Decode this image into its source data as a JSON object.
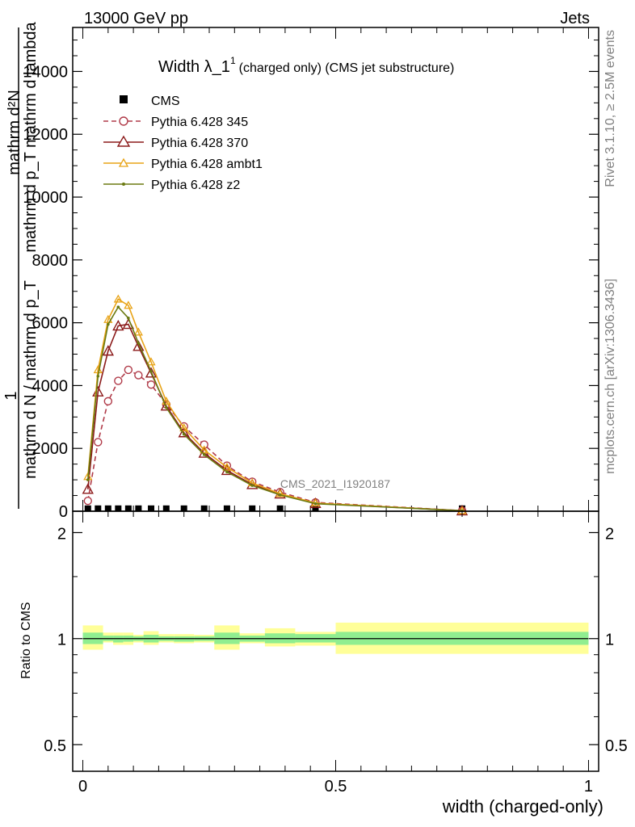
{
  "header": {
    "left": "13000 GeV pp",
    "right": "Jets"
  },
  "side_text": {
    "rivet": "Rivet 3.1.10, ≥ 2.5M events",
    "mcplots": "mcplots.cern.ch [arXiv:1306.3436]"
  },
  "watermark": "CMS_2021_I1920187",
  "chart_data": [
    {
      "type": "line",
      "title": "Width λ_1",
      "title_sup": "1",
      "title_suffix": "(charged only) (CMS jet substructure)",
      "ylabel_fraction_one": "1",
      "ylabel_top": "mathrm d²N",
      "ylabel_top2": "mathrm d p_T mathrm d lambda",
      "ylabel_bottom": "mathrm d N / mathrm d p_T",
      "ylim": [
        0,
        15400
      ],
      "xlim": [
        -0.02,
        1.02
      ],
      "yticks": [
        0,
        2000,
        4000,
        6000,
        8000,
        10000,
        12000,
        14000
      ],
      "ytick_labels": [
        "0",
        "2000",
        "4000",
        "6000",
        "8000",
        "10000",
        "12000",
        "14000"
      ],
      "legend_position": "top-left",
      "series": [
        {
          "name": "CMS",
          "color": "#000000",
          "marker": "square",
          "x": [
            0.01,
            0.03,
            0.05,
            0.07,
            0.09,
            0.11,
            0.135,
            0.165,
            0.2,
            0.24,
            0.285,
            0.335,
            0.39,
            0.46,
            0.75
          ],
          "y": [
            5,
            5,
            5,
            5,
            5,
            5,
            5,
            5,
            5,
            5,
            5,
            5,
            5,
            5,
            5
          ]
        },
        {
          "name": "Pythia 6.428 345",
          "color": "#b03a48",
          "marker": "open-circle",
          "dash": "dashed",
          "x": [
            0.01,
            0.03,
            0.05,
            0.07,
            0.09,
            0.11,
            0.135,
            0.165,
            0.2,
            0.24,
            0.285,
            0.335,
            0.39,
            0.46,
            0.75
          ],
          "y": [
            330,
            2200,
            3500,
            4150,
            4500,
            4330,
            4030,
            3400,
            2700,
            2120,
            1450,
            940,
            610,
            280,
            20
          ]
        },
        {
          "name": "Pythia 6.428 370",
          "color": "#8b1a1a",
          "marker": "open-triangle",
          "x": [
            0.01,
            0.03,
            0.05,
            0.07,
            0.09,
            0.11,
            0.135,
            0.165,
            0.2,
            0.24,
            0.285,
            0.335,
            0.39,
            0.46,
            0.75
          ],
          "y": [
            700,
            3800,
            5100,
            5900,
            5950,
            5250,
            4400,
            3350,
            2500,
            1850,
            1300,
            850,
            550,
            250,
            15
          ]
        },
        {
          "name": "Pythia 6.428 ambt1",
          "color": "#e8a317",
          "marker": "open-triangle-small",
          "x": [
            0.01,
            0.03,
            0.05,
            0.07,
            0.09,
            0.11,
            0.135,
            0.165,
            0.2,
            0.24,
            0.285,
            0.335,
            0.39,
            0.46,
            0.75
          ],
          "y": [
            1100,
            4500,
            6100,
            6750,
            6550,
            5700,
            4750,
            3500,
            2650,
            1950,
            1400,
            900,
            560,
            260,
            15
          ]
        },
        {
          "name": "Pythia 6.428 z2",
          "color": "#6b7a12",
          "marker": "dot",
          "x": [
            0.01,
            0.03,
            0.05,
            0.07,
            0.09,
            0.11,
            0.135,
            0.165,
            0.2,
            0.24,
            0.285,
            0.335,
            0.39,
            0.46,
            0.75
          ],
          "y": [
            1000,
            4300,
            5950,
            6500,
            6150,
            5350,
            4450,
            3300,
            2450,
            1800,
            1250,
            820,
            520,
            240,
            15
          ]
        }
      ]
    },
    {
      "type": "band",
      "ylabel": "Ratio to CMS",
      "xlabel": "width (charged-only)",
      "ylim": [
        0.42,
        2.3
      ],
      "log_scale_y": true,
      "yticks": [
        0.5,
        1,
        2
      ],
      "ytick_labels": [
        "0.5",
        "1",
        "2"
      ],
      "xticks": [
        0,
        0.5,
        1
      ],
      "xtick_labels": [
        "0",
        "0.5",
        "1"
      ],
      "reference_line": 1,
      "band_inner_color": "#90ee90",
      "band_outer_color": "#ffff99",
      "bins": [
        {
          "x0": 0.0,
          "x1": 0.04,
          "inner": [
            0.965,
            1.04
          ],
          "outer": [
            0.93,
            1.09
          ]
        },
        {
          "x0": 0.04,
          "x1": 0.06,
          "inner": [
            0.985,
            1.02
          ],
          "outer": [
            0.975,
            1.04
          ]
        },
        {
          "x0": 0.06,
          "x1": 0.08,
          "inner": [
            0.975,
            1.02
          ],
          "outer": [
            0.96,
            1.04
          ]
        },
        {
          "x0": 0.08,
          "x1": 0.1,
          "inner": [
            0.98,
            1.02
          ],
          "outer": [
            0.96,
            1.04
          ]
        },
        {
          "x0": 0.1,
          "x1": 0.12,
          "inner": [
            0.985,
            1.015
          ],
          "outer": [
            0.975,
            1.025
          ]
        },
        {
          "x0": 0.12,
          "x1": 0.15,
          "inner": [
            0.975,
            1.025
          ],
          "outer": [
            0.96,
            1.05
          ]
        },
        {
          "x0": 0.15,
          "x1": 0.18,
          "inner": [
            0.985,
            1.015
          ],
          "outer": [
            0.975,
            1.03
          ]
        },
        {
          "x0": 0.18,
          "x1": 0.22,
          "inner": [
            0.98,
            1.015
          ],
          "outer": [
            0.97,
            1.03
          ]
        },
        {
          "x0": 0.22,
          "x1": 0.26,
          "inner": [
            0.985,
            1.015
          ],
          "outer": [
            0.975,
            1.025
          ]
        },
        {
          "x0": 0.26,
          "x1": 0.31,
          "inner": [
            0.965,
            1.04
          ],
          "outer": [
            0.93,
            1.09
          ]
        },
        {
          "x0": 0.31,
          "x1": 0.36,
          "inner": [
            0.98,
            1.02
          ],
          "outer": [
            0.97,
            1.035
          ]
        },
        {
          "x0": 0.36,
          "x1": 0.42,
          "inner": [
            0.97,
            1.035
          ],
          "outer": [
            0.95,
            1.07
          ]
        },
        {
          "x0": 0.42,
          "x1": 0.5,
          "inner": [
            0.975,
            1.03
          ],
          "outer": [
            0.955,
            1.045
          ]
        },
        {
          "x0": 0.5,
          "x1": 1.0,
          "inner": [
            0.96,
            1.045
          ],
          "outer": [
            0.905,
            1.11
          ]
        }
      ]
    }
  ]
}
